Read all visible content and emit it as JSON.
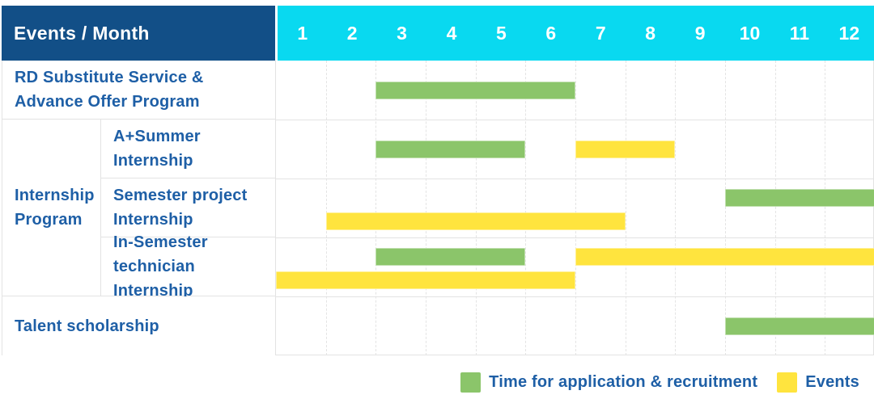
{
  "header": {
    "title": "Events / Month",
    "months": [
      "1",
      "2",
      "3",
      "4",
      "5",
      "6",
      "7",
      "8",
      "9",
      "10",
      "11",
      "12"
    ]
  },
  "group": {
    "label_lines": [
      "Internship",
      "Program"
    ]
  },
  "rows": [
    {
      "label_lines": [
        "RD Substitute Service &",
        "Advance Offer Program"
      ]
    },
    {
      "label_lines": [
        "A+Summer",
        "Internship"
      ]
    },
    {
      "label_lines": [
        "Semester project",
        "Internship"
      ]
    },
    {
      "label_lines": [
        "In-Semester",
        "technician Internship"
      ]
    },
    {
      "label_lines": [
        "Talent scholarship"
      ]
    }
  ],
  "legend": [
    {
      "key": "application",
      "label": "Time for application & recruitment",
      "color": "#8BC56A"
    },
    {
      "key": "event",
      "label": "Events",
      "color": "#FFE43E"
    }
  ],
  "colors": {
    "header_bg": "#124F87",
    "months_bg": "#09D9F0",
    "text_blue": "#1E5FA6",
    "application_green": "#8BC56A",
    "event_yellow": "#FFE43E",
    "grid": "#E3E3E3"
  },
  "chart_data": {
    "type": "bar",
    "subtype": "gantt",
    "title": "Events / Month",
    "xlabel": "Month",
    "x_ticks": [
      1,
      2,
      3,
      4,
      5,
      6,
      7,
      8,
      9,
      10,
      11,
      12
    ],
    "xlim": [
      1,
      12
    ],
    "grid": true,
    "legend_position": "bottom-right",
    "legend_entries": [
      "Time for application & recruitment",
      "Events"
    ],
    "rows": [
      {
        "label": "RD Substitute Service & Advance Offer Program",
        "group": null,
        "bars": [
          {
            "series_key": "application",
            "series": "Time for application & recruitment",
            "lane": 0,
            "start_month": 3,
            "end_month": 6
          }
        ]
      },
      {
        "label": "A+Summer Internship",
        "group": "Internship Program",
        "bars": [
          {
            "series_key": "application",
            "series": "Time for application & recruitment",
            "lane": 0,
            "start_month": 3,
            "end_month": 5
          },
          {
            "series_key": "event",
            "series": "Events",
            "lane": 0,
            "start_month": 7,
            "end_month": 8
          }
        ]
      },
      {
        "label": "Semester project Internship",
        "group": "Internship Program",
        "bars": [
          {
            "series_key": "application",
            "series": "Time for application & recruitment",
            "lane": 0,
            "start_month": 10,
            "end_month": 12
          },
          {
            "series_key": "event",
            "series": "Events",
            "lane": 1,
            "start_month": 2,
            "end_month": 7
          }
        ]
      },
      {
        "label": "In-Semester technician Internship",
        "group": "Internship Program",
        "bars": [
          {
            "series_key": "application",
            "series": "Time for application & recruitment",
            "lane": 0,
            "start_month": 3,
            "end_month": 5
          },
          {
            "series_key": "event",
            "series": "Events",
            "lane": 0,
            "start_month": 7,
            "end_month": 12
          },
          {
            "series_key": "event",
            "series": "Events",
            "lane": 1,
            "start_month": 1,
            "end_month": 6
          }
        ]
      },
      {
        "label": "Talent scholarship",
        "group": null,
        "bars": [
          {
            "series_key": "application",
            "series": "Time for application & recruitment",
            "lane": 0,
            "start_month": 10,
            "end_month": 12
          }
        ]
      }
    ]
  }
}
